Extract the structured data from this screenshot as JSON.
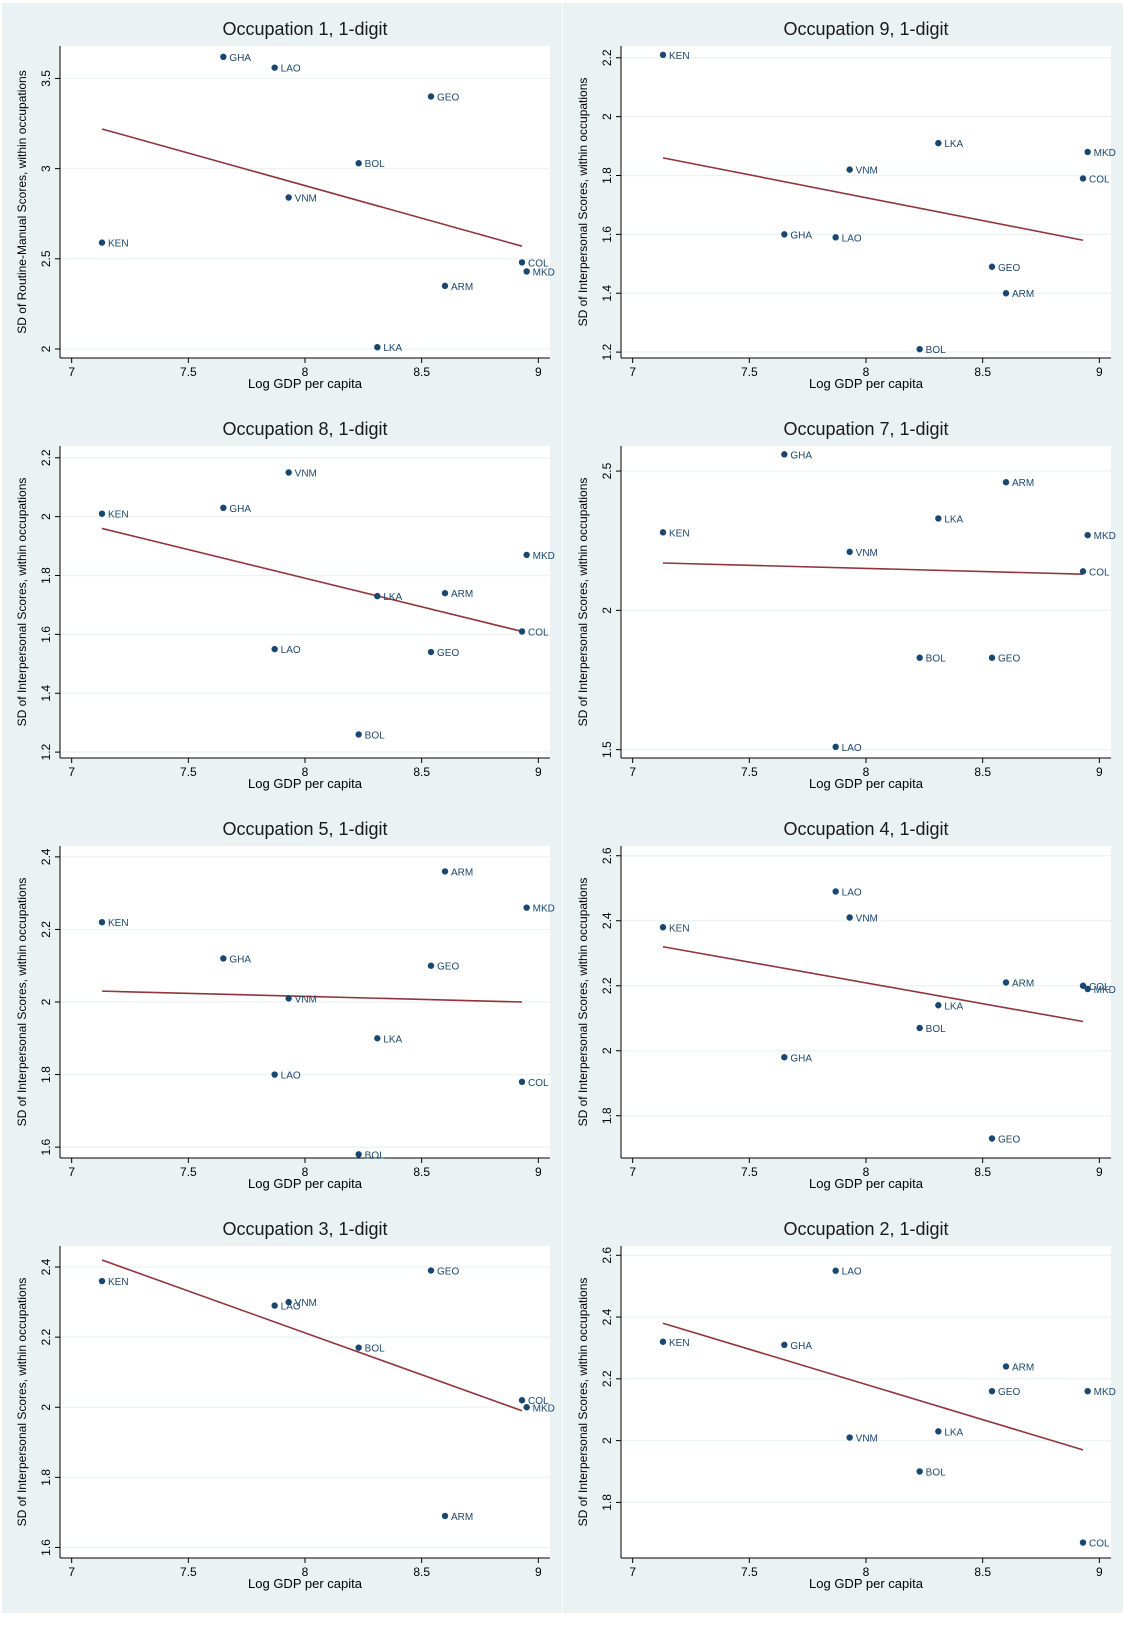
{
  "colors": {
    "panel_background": "#eaf2f3",
    "plot_background": "#ffffff",
    "marker": "#1a476f",
    "fit_line": "#90353b",
    "gridline": "#eaf2f3",
    "text": "#000000"
  },
  "chart_data": [
    {
      "type": "scatter",
      "title": "Occupation 1, 1-digit",
      "xlabel": "Log GDP per capita",
      "ylabel": "SD of Routine-Manual Scores, within occupations",
      "xlim": [
        6.95,
        9.05
      ],
      "ylim": [
        1.95,
        3.68
      ],
      "xticks": [
        "7",
        "7.5",
        "8",
        "8.5",
        "9"
      ],
      "yticks": [
        "2",
        "2.5",
        "3",
        "3.5"
      ],
      "points": [
        {
          "label": "KEN",
          "x": 7.13,
          "y": 2.59
        },
        {
          "label": "GHA",
          "x": 7.65,
          "y": 3.62
        },
        {
          "label": "LAO",
          "x": 7.87,
          "y": 3.56
        },
        {
          "label": "VNM",
          "x": 7.93,
          "y": 2.84
        },
        {
          "label": "BOL",
          "x": 8.23,
          "y": 3.03
        },
        {
          "label": "LKA",
          "x": 8.31,
          "y": 2.01
        },
        {
          "label": "GEO",
          "x": 8.54,
          "y": 3.4
        },
        {
          "label": "ARM",
          "x": 8.6,
          "y": 2.35
        },
        {
          "label": "COL",
          "x": 8.93,
          "y": 2.48
        },
        {
          "label": "MKD",
          "x": 8.95,
          "y": 2.43
        }
      ],
      "fit_line": {
        "x": [
          7.13,
          8.93
        ],
        "y": [
          3.22,
          2.57
        ]
      }
    },
    {
      "type": "scatter",
      "title": "Occupation 9, 1-digit",
      "xlabel": "Log GDP per capita",
      "ylabel": "SD of Interpersonal Scores, within occupations",
      "xlim": [
        6.95,
        9.05
      ],
      "ylim": [
        1.18,
        2.24
      ],
      "xticks": [
        "7",
        "7.5",
        "8",
        "8.5",
        "9"
      ],
      "yticks": [
        "1.2",
        "1.4",
        "1.6",
        "1.8",
        "2",
        "2.2"
      ],
      "points": [
        {
          "label": "KEN",
          "x": 7.13,
          "y": 2.21
        },
        {
          "label": "GHA",
          "x": 7.65,
          "y": 1.6
        },
        {
          "label": "LAO",
          "x": 7.87,
          "y": 1.59
        },
        {
          "label": "VNM",
          "x": 7.93,
          "y": 1.82
        },
        {
          "label": "BOL",
          "x": 8.23,
          "y": 1.21
        },
        {
          "label": "LKA",
          "x": 8.31,
          "y": 1.91
        },
        {
          "label": "GEO",
          "x": 8.54,
          "y": 1.49
        },
        {
          "label": "ARM",
          "x": 8.6,
          "y": 1.4
        },
        {
          "label": "COL",
          "x": 8.93,
          "y": 1.79
        },
        {
          "label": "MKD",
          "x": 8.95,
          "y": 1.88
        }
      ],
      "fit_line": {
        "x": [
          7.13,
          8.93
        ],
        "y": [
          1.86,
          1.58
        ]
      }
    },
    {
      "type": "scatter",
      "title": "Occupation 8, 1-digit",
      "xlabel": "Log GDP per capita",
      "ylabel": "SD of Interpersonal Scores, within occupations",
      "xlim": [
        6.95,
        9.05
      ],
      "ylim": [
        1.18,
        2.24
      ],
      "xticks": [
        "7",
        "7.5",
        "8",
        "8.5",
        "9"
      ],
      "yticks": [
        "1.2",
        "1.4",
        "1.6",
        "1.8",
        "2",
        "2.2"
      ],
      "points": [
        {
          "label": "KEN",
          "x": 7.13,
          "y": 2.01
        },
        {
          "label": "GHA",
          "x": 7.65,
          "y": 2.03
        },
        {
          "label": "LAO",
          "x": 7.87,
          "y": 1.55
        },
        {
          "label": "VNM",
          "x": 7.93,
          "y": 2.15
        },
        {
          "label": "BOL",
          "x": 8.23,
          "y": 1.26
        },
        {
          "label": "LKA",
          "x": 8.31,
          "y": 1.73
        },
        {
          "label": "GEO",
          "x": 8.54,
          "y": 1.54
        },
        {
          "label": "ARM",
          "x": 8.6,
          "y": 1.74
        },
        {
          "label": "COL",
          "x": 8.93,
          "y": 1.61
        },
        {
          "label": "MKD",
          "x": 8.95,
          "y": 1.87
        }
      ],
      "fit_line": {
        "x": [
          7.13,
          8.93
        ],
        "y": [
          1.96,
          1.61
        ]
      }
    },
    {
      "type": "scatter",
      "title": "Occupation 7, 1-digit",
      "xlabel": "Log GDP per capita",
      "ylabel": "SD of Interpersonal Scores, within occupations",
      "xlim": [
        6.95,
        9.05
      ],
      "ylim": [
        1.47,
        2.59
      ],
      "xticks": [
        "7",
        "7.5",
        "8",
        "8.5",
        "9"
      ],
      "yticks": [
        "1.5",
        "2",
        "2.5"
      ],
      "points": [
        {
          "label": "KEN",
          "x": 7.13,
          "y": 2.28
        },
        {
          "label": "GHA",
          "x": 7.65,
          "y": 2.56
        },
        {
          "label": "LAO",
          "x": 7.87,
          "y": 1.51
        },
        {
          "label": "VNM",
          "x": 7.93,
          "y": 2.21
        },
        {
          "label": "BOL",
          "x": 8.23,
          "y": 1.83
        },
        {
          "label": "LKA",
          "x": 8.31,
          "y": 2.33
        },
        {
          "label": "GEO",
          "x": 8.54,
          "y": 1.83
        },
        {
          "label": "ARM",
          "x": 8.6,
          "y": 2.46
        },
        {
          "label": "COL",
          "x": 8.93,
          "y": 2.14
        },
        {
          "label": "MKD",
          "x": 8.95,
          "y": 2.27
        }
      ],
      "fit_line": {
        "x": [
          7.13,
          8.93
        ],
        "y": [
          2.17,
          2.13
        ]
      }
    },
    {
      "type": "scatter",
      "title": "Occupation 5, 1-digit",
      "xlabel": "Log GDP per capita",
      "ylabel": "SD of Interpersonal Scores, within occupations",
      "xlim": [
        6.95,
        9.05
      ],
      "ylim": [
        1.57,
        2.43
      ],
      "xticks": [
        "7",
        "7.5",
        "8",
        "8.5",
        "9"
      ],
      "yticks": [
        "1.6",
        "1.8",
        "2",
        "2.2",
        "2.4"
      ],
      "points": [
        {
          "label": "KEN",
          "x": 7.13,
          "y": 2.22
        },
        {
          "label": "GHA",
          "x": 7.65,
          "y": 2.12
        },
        {
          "label": "LAO",
          "x": 7.87,
          "y": 1.8
        },
        {
          "label": "VNM",
          "x": 7.93,
          "y": 2.01
        },
        {
          "label": "BOL",
          "x": 8.23,
          "y": 1.58
        },
        {
          "label": "LKA",
          "x": 8.31,
          "y": 1.9
        },
        {
          "label": "GEO",
          "x": 8.54,
          "y": 2.1
        },
        {
          "label": "ARM",
          "x": 8.6,
          "y": 2.36
        },
        {
          "label": "COL",
          "x": 8.93,
          "y": 1.78
        },
        {
          "label": "MKD",
          "x": 8.95,
          "y": 2.26
        }
      ],
      "fit_line": {
        "x": [
          7.13,
          8.93
        ],
        "y": [
          2.03,
          2.0
        ]
      }
    },
    {
      "type": "scatter",
      "title": "Occupation 4, 1-digit",
      "xlabel": "Log GDP per capita",
      "ylabel": "SD of Interpersonal Scores, within occupations",
      "xlim": [
        6.95,
        9.05
      ],
      "ylim": [
        1.67,
        2.63
      ],
      "xticks": [
        "7",
        "7.5",
        "8",
        "8.5",
        "9"
      ],
      "yticks": [
        "1.8",
        "2",
        "2.2",
        "2.4",
        "2.6"
      ],
      "points": [
        {
          "label": "KEN",
          "x": 7.13,
          "y": 2.38
        },
        {
          "label": "GHA",
          "x": 7.65,
          "y": 1.98
        },
        {
          "label": "LAO",
          "x": 7.87,
          "y": 2.49
        },
        {
          "label": "VNM",
          "x": 7.93,
          "y": 2.41
        },
        {
          "label": "BOL",
          "x": 8.23,
          "y": 2.07
        },
        {
          "label": "LKA",
          "x": 8.31,
          "y": 2.14
        },
        {
          "label": "GEO",
          "x": 8.54,
          "y": 1.73
        },
        {
          "label": "ARM",
          "x": 8.6,
          "y": 2.21
        },
        {
          "label": "COL",
          "x": 8.93,
          "y": 2.2
        },
        {
          "label": "MKD",
          "x": 8.95,
          "y": 2.19
        }
      ],
      "fit_line": {
        "x": [
          7.13,
          8.93
        ],
        "y": [
          2.32,
          2.09
        ]
      }
    },
    {
      "type": "scatter",
      "title": "Occupation 3, 1-digit",
      "xlabel": "Log GDP per capita",
      "ylabel": "SD of Interpersonal Scores, within occupations",
      "xlim": [
        6.95,
        9.05
      ],
      "ylim": [
        1.57,
        2.46
      ],
      "xticks": [
        "7",
        "7.5",
        "8",
        "8.5",
        "9"
      ],
      "yticks": [
        "1.6",
        "1.8",
        "2",
        "2.2",
        "2.4"
      ],
      "points": [
        {
          "label": "KEN",
          "x": 7.13,
          "y": 2.36
        },
        {
          "label": "LAO",
          "x": 7.87,
          "y": 2.29
        },
        {
          "label": "VNM",
          "x": 7.93,
          "y": 2.3
        },
        {
          "label": "BOL",
          "x": 8.23,
          "y": 2.17
        },
        {
          "label": "GEO",
          "x": 8.54,
          "y": 2.39
        },
        {
          "label": "ARM",
          "x": 8.6,
          "y": 1.69
        },
        {
          "label": "COL",
          "x": 8.93,
          "y": 2.02
        },
        {
          "label": "MKD",
          "x": 8.95,
          "y": 2.0
        }
      ],
      "fit_line": {
        "x": [
          7.13,
          8.93
        ],
        "y": [
          2.42,
          1.99
        ]
      }
    },
    {
      "type": "scatter",
      "title": "Occupation 2, 1-digit",
      "xlabel": "Log GDP per capita",
      "ylabel": "SD of Interpersonal Scores, within occupations",
      "xlim": [
        6.95,
        9.05
      ],
      "ylim": [
        1.62,
        2.63
      ],
      "xticks": [
        "7",
        "7.5",
        "8",
        "8.5",
        "9"
      ],
      "yticks": [
        "1.8",
        "2",
        "2.2",
        "2.4",
        "2.6"
      ],
      "points": [
        {
          "label": "KEN",
          "x": 7.13,
          "y": 2.32
        },
        {
          "label": "GHA",
          "x": 7.65,
          "y": 2.31
        },
        {
          "label": "LAO",
          "x": 7.87,
          "y": 2.55
        },
        {
          "label": "VNM",
          "x": 7.93,
          "y": 2.01
        },
        {
          "label": "BOL",
          "x": 8.23,
          "y": 1.9
        },
        {
          "label": "LKA",
          "x": 8.31,
          "y": 2.03
        },
        {
          "label": "GEO",
          "x": 8.54,
          "y": 2.16
        },
        {
          "label": "ARM",
          "x": 8.6,
          "y": 2.24
        },
        {
          "label": "COL",
          "x": 8.93,
          "y": 1.67
        },
        {
          "label": "MKD",
          "x": 8.95,
          "y": 2.16
        }
      ],
      "fit_line": {
        "x": [
          7.13,
          8.93
        ],
        "y": [
          2.38,
          1.97
        ]
      }
    }
  ]
}
